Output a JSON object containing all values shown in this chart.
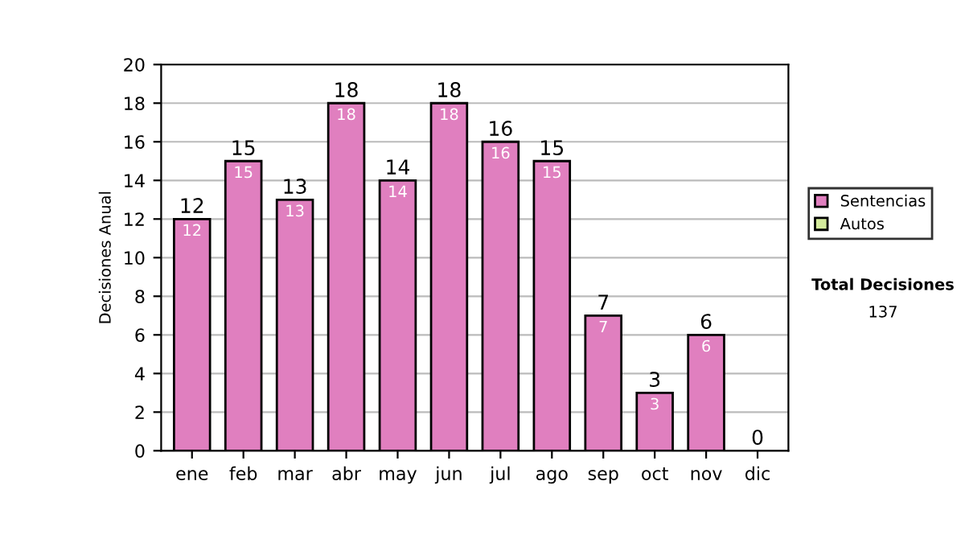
{
  "chart_data": {
    "type": "bar",
    "ylabel": "Decisiones Anual",
    "categories": [
      "ene",
      "feb",
      "mar",
      "abr",
      "may",
      "jun",
      "jul",
      "ago",
      "sep",
      "oct",
      "nov",
      "dic"
    ],
    "series": [
      {
        "name": "Sentencias",
        "color": "#e07fbf",
        "values": [
          12,
          15,
          13,
          18,
          14,
          18,
          16,
          15,
          7,
          3,
          6,
          0
        ],
        "value_labels": [
          "12",
          "15",
          "13",
          "18",
          "14",
          "18",
          "16",
          "15",
          "7",
          "3",
          "6",
          null
        ]
      },
      {
        "name": "Autos",
        "color": "#d4eb9c",
        "values": [
          0,
          0,
          0,
          0,
          0,
          0,
          0,
          0,
          0,
          0,
          0,
          0
        ]
      }
    ],
    "stacked": true,
    "totals": [
      "12",
      "15",
      "13",
      "18",
      "14",
      "18",
      "16",
      "15",
      "7",
      "3",
      "6",
      "0"
    ],
    "ylim": [
      0,
      20
    ],
    "yticks": [
      0,
      2,
      4,
      6,
      8,
      10,
      12,
      14,
      16,
      18,
      20
    ],
    "grid": "y",
    "legend": "right",
    "annotations": [
      "Total Decisiones",
      "137"
    ]
  }
}
